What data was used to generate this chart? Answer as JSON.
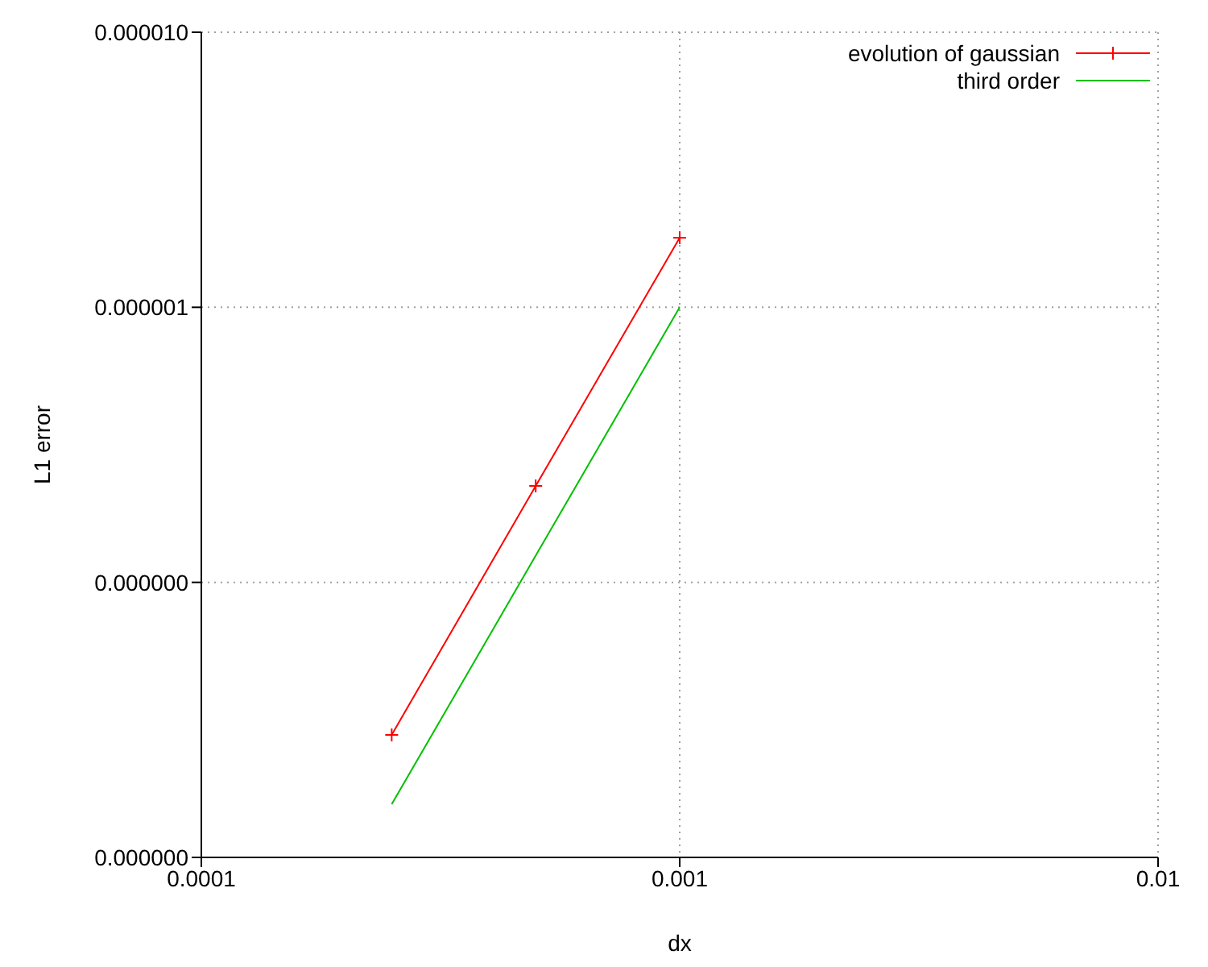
{
  "chart_data": {
    "type": "line",
    "xlabel": "dx",
    "ylabel": "L1 error",
    "log": "xy",
    "grid": true,
    "legend": "top right",
    "xlim": [
      0.0001,
      0.01
    ],
    "xticks": [
      0.0001,
      0.001,
      0.01
    ],
    "ylim": [
      1e-08,
      1e-05
    ],
    "yticks": [
      {
        "value": 1e-08,
        "label": "0.000000"
      },
      {
        "value": 1e-07,
        "label": "0.000000"
      },
      {
        "value": 1e-06,
        "label": "0.000001"
      },
      {
        "value": 1e-05,
        "label": "0.000010"
      }
    ],
    "series": [
      {
        "name": "evolution of gaussian",
        "color": "#ff0000",
        "marker": "cross",
        "x": [
          0.00025,
          0.0005,
          0.001
        ],
        "values": [
          2.79e-08,
          2.24e-07,
          1.79e-06
        ]
      },
      {
        "name": "third order",
        "color": "#00c000",
        "marker": "none",
        "x": [
          0.00025,
          0.0005,
          0.001
        ],
        "values": [
          1.56e-08,
          1.25e-07,
          1e-06
        ]
      }
    ]
  }
}
